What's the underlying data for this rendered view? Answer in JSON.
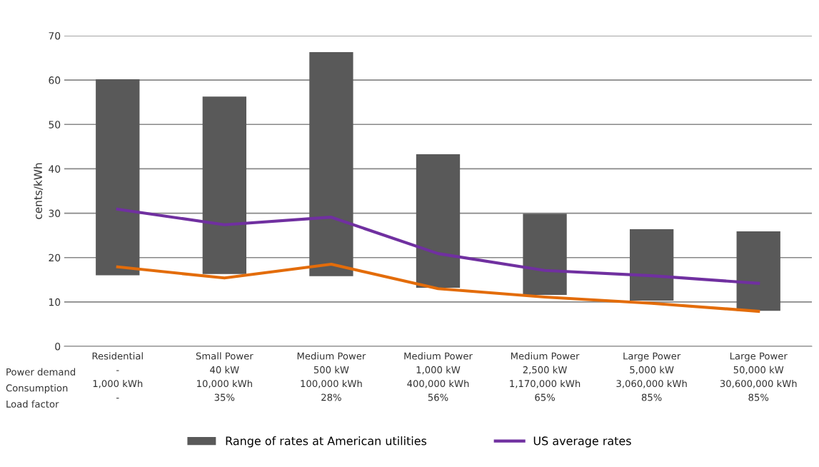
{
  "chart_data": {
    "type": "bar",
    "ylabel": "cents/kWh",
    "categories": [
      "Residential\n-\n1,000 kWh\n-",
      "Small Power\n40 kW\n10,000 kWh\n35%",
      "Medium Power\n500 kW\n100,000 kWh\n28%",
      "Medium Power\n1,000 kW\n400,000 kWh\n56%",
      "Medium Power\n2,500 kW\n1,170,000 kWh\n65%",
      "Large Power\n5,000 kW\n3,060,000 kWh\n85%",
      "Large Power\n50,000 kW\n30,600,000 kWh\n85%"
    ],
    "series": [
      {
        "name": "Range of rates at American utilities",
        "color": "#595959",
        "base": [
          16.0,
          16.3,
          15.8,
          13.2,
          11.6,
          10.3,
          8.0
        ],
        "values": [
          44.2,
          40.0,
          50.5,
          30.1,
          18.3,
          16.1,
          17.9
        ]
      },
      {
        "type": "line",
        "color": "#e36c0a",
        "values": [
          17.9,
          15.4,
          18.5,
          13.0,
          11.1,
          9.7,
          7.9
        ]
      },
      {
        "name": "US average rates",
        "type": "line",
        "color": "#7030a0",
        "values": [
          30.9,
          27.4,
          29.1,
          20.9,
          17.1,
          15.9,
          14.2
        ]
      }
    ],
    "annotations": [
      "Power demand",
      "Consumption",
      "Load factor"
    ],
    "ylim": [
      0,
      70
    ],
    "yticks": [
      0,
      10,
      20,
      30,
      40,
      50,
      60,
      70
    ],
    "grid": "y",
    "legend": "bottom",
    "marker": "none",
    "line_style": "solid"
  }
}
